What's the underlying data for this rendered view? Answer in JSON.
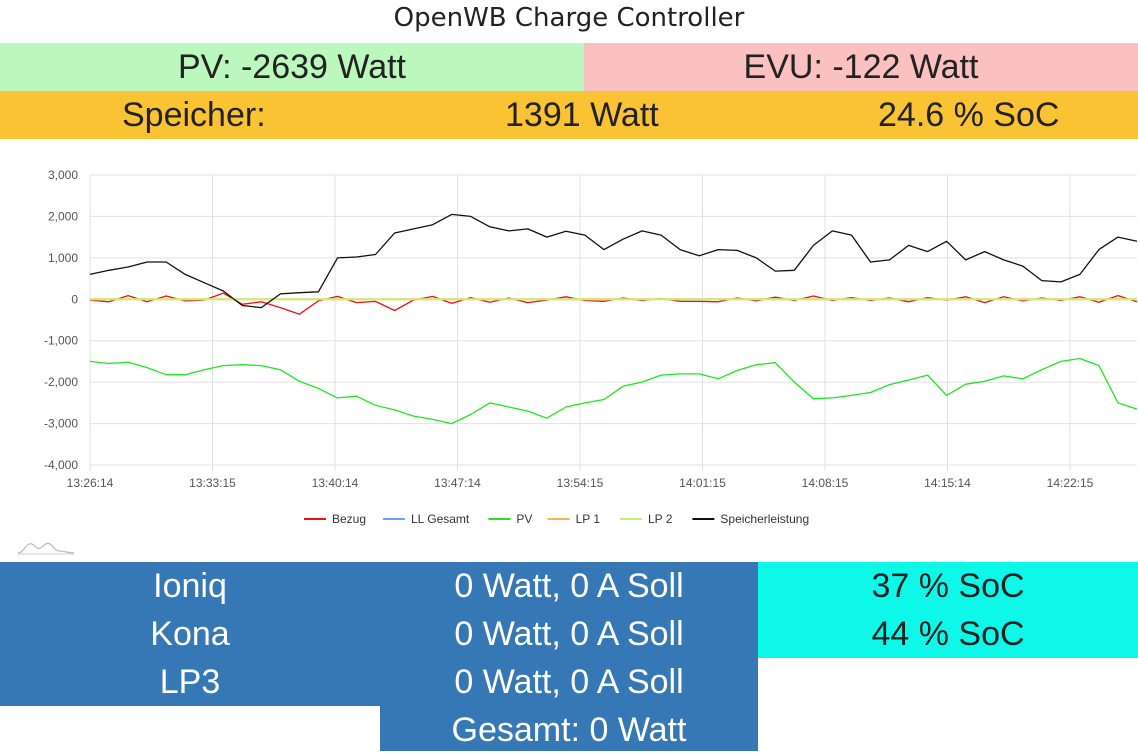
{
  "title": "OpenWB Charge Controller",
  "pv": "PV: -2639 Watt",
  "evu": "EVU: -122 Watt",
  "speicher": {
    "label": "Speicher:",
    "power": "1391 Watt",
    "soc": "24.6 % SoC"
  },
  "colors": {
    "pv_bg": "#bcf7be",
    "evu_bg": "#fbc1c1",
    "speicher_bg": "#fac334",
    "lp_bg": "#3677b6",
    "soc_bg": "#0ef8e9"
  },
  "loadpoints": [
    {
      "name": "Ioniq",
      "status": "0 Watt, 0 A Soll",
      "soc": "37 % SoC"
    },
    {
      "name": "Kona",
      "status": "0 Watt, 0 A Soll",
      "soc": "44 % SoC"
    },
    {
      "name": "LP3",
      "status": "0 Watt, 0 A Soll"
    }
  ],
  "gesamt": "Gesamt: 0 Watt",
  "chart_data": {
    "type": "line",
    "x_ticks": [
      "13:26:14",
      "13:33:15",
      "13:40:14",
      "13:47:14",
      "13:54:15",
      "14:01:15",
      "14:08:15",
      "14:15:14",
      "14:22:15"
    ],
    "y_ticks": [
      "3,000",
      "2,000",
      "1,000",
      "0",
      "-1,000",
      "-2,000",
      "-3,000",
      "-4,000"
    ],
    "ylim": [
      -4000,
      3000
    ],
    "legend_position": "bottom",
    "series": [
      {
        "name": "Bezug",
        "color": "#ee1111",
        "values": [
          -20,
          -60,
          90,
          -60,
          80,
          -40,
          -20,
          150,
          -120,
          -60,
          -200,
          -360,
          -40,
          70,
          -80,
          -50,
          -270,
          -20,
          70,
          -100,
          40,
          -70,
          30,
          -80,
          -20,
          60,
          -30,
          -50,
          30,
          -30,
          20,
          -50,
          -50,
          -60,
          30,
          -40,
          50,
          -30,
          80,
          -30,
          40,
          -30,
          30,
          -60,
          40,
          -20,
          60,
          -80,
          60,
          -40,
          30,
          -30,
          60,
          -70,
          90,
          -60
        ]
      },
      {
        "name": "LL Gesamt",
        "color": "#6fa0ee",
        "values": [
          0,
          0,
          0,
          0,
          0,
          0,
          0,
          0,
          0,
          0,
          0,
          0,
          0,
          0,
          0,
          0,
          0,
          0,
          0,
          0,
          0,
          0,
          0,
          0,
          0,
          0,
          0,
          0,
          0,
          0,
          0,
          0,
          0,
          0,
          0,
          0,
          0,
          0,
          0,
          0,
          0,
          0,
          0,
          0,
          0,
          0,
          0,
          0,
          0,
          0,
          0,
          0,
          0,
          0,
          0,
          0
        ]
      },
      {
        "name": "PV",
        "color": "#1ee623",
        "values": [
          -1500,
          -1550,
          -1520,
          -1650,
          -1820,
          -1820,
          -1700,
          -1600,
          -1580,
          -1600,
          -1700,
          -1980,
          -2150,
          -2380,
          -2340,
          -2560,
          -2670,
          -2820,
          -2900,
          -3000,
          -2780,
          -2500,
          -2600,
          -2700,
          -2870,
          -2600,
          -2500,
          -2420,
          -2100,
          -2000,
          -1830,
          -1800,
          -1800,
          -1920,
          -1720,
          -1580,
          -1530,
          -2000,
          -2400,
          -2380,
          -2320,
          -2250,
          -2060,
          -1950,
          -1830,
          -2320,
          -2050,
          -1980,
          -1850,
          -1920,
          -1700,
          -1500,
          -1430,
          -1600,
          -2500,
          -2650
        ]
      },
      {
        "name": "LP 1",
        "color": "#f3b74e",
        "values": [
          0,
          0,
          0,
          0,
          0,
          0,
          0,
          0,
          0,
          0,
          0,
          0,
          0,
          0,
          0,
          0,
          0,
          0,
          0,
          0,
          0,
          0,
          0,
          0,
          0,
          0,
          0,
          0,
          0,
          0,
          0,
          0,
          0,
          0,
          0,
          0,
          0,
          0,
          0,
          0,
          0,
          0,
          0,
          0,
          0,
          0,
          0,
          0,
          0,
          0,
          0,
          0,
          0,
          0,
          0,
          0
        ]
      },
      {
        "name": "LP 2",
        "color": "#c8ee7a",
        "values": [
          0,
          0,
          0,
          0,
          0,
          0,
          0,
          0,
          0,
          0,
          0,
          0,
          0,
          0,
          0,
          0,
          0,
          0,
          0,
          0,
          0,
          0,
          0,
          0,
          0,
          0,
          0,
          0,
          0,
          0,
          0,
          0,
          0,
          0,
          0,
          0,
          0,
          0,
          0,
          0,
          0,
          0,
          0,
          0,
          0,
          0,
          0,
          0,
          0,
          0,
          0,
          0,
          0,
          0,
          0,
          0
        ]
      },
      {
        "name": "Speicherleistung",
        "color": "#111111",
        "values": [
          600,
          700,
          780,
          900,
          900,
          600,
          400,
          200,
          -150,
          -200,
          130,
          160,
          180,
          1000,
          1020,
          1080,
          1600,
          1700,
          1800,
          2050,
          2000,
          1750,
          1650,
          1700,
          1500,
          1640,
          1550,
          1200,
          1450,
          1650,
          1550,
          1200,
          1050,
          1200,
          1180,
          1000,
          680,
          700,
          1300,
          1650,
          1550,
          900,
          950,
          1300,
          1150,
          1400,
          950,
          1150,
          950,
          800,
          450,
          420,
          600,
          1200,
          1500,
          1400
        ]
      }
    ]
  }
}
